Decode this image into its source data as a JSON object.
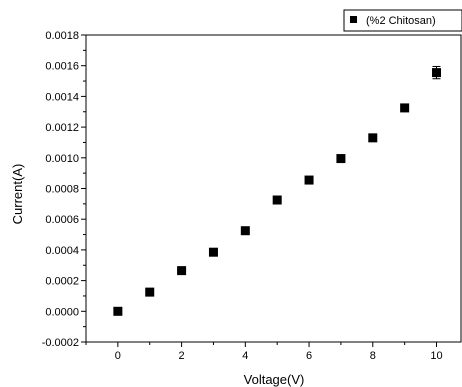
{
  "chart_data": {
    "type": "scatter",
    "xlabel": "Voltage(V)",
    "ylabel": "Current(A)",
    "xlim": [
      -1,
      10.8
    ],
    "ylim": [
      -0.0002,
      0.0018
    ],
    "x_ticks": [
      0,
      2,
      4,
      6,
      8,
      10
    ],
    "x_tick_labels": [
      "0",
      "2",
      "4",
      "6",
      "8",
      "10"
    ],
    "y_ticks": [
      -0.0002,
      0,
      0.0002,
      0.0004,
      0.0006,
      0.0008,
      0.001,
      0.0012,
      0.0014,
      0.0016,
      0.0018
    ],
    "y_tick_labels": [
      "-0.0002",
      "0.0000",
      "0.0002",
      "0.0004",
      "0.0006",
      "0.0008",
      "0.0010",
      "0.0012",
      "0.0014",
      "0.0016",
      "0.0018"
    ],
    "grid": false,
    "legend_position": "top-right",
    "series": [
      {
        "name": "(%2 Chitosan)",
        "color": "#000000",
        "marker": "square",
        "x": [
          0,
          1,
          2,
          3,
          4,
          5,
          6,
          7,
          8,
          9,
          10
        ],
        "y": [
          0.0,
          0.000125,
          0.000265,
          0.000385,
          0.000525,
          0.000725,
          0.000855,
          0.000995,
          0.00113,
          0.001325,
          0.001555
        ],
        "error": [
          0,
          0,
          0,
          0,
          0,
          0,
          0,
          0,
          0,
          0,
          4e-05
        ]
      }
    ]
  }
}
